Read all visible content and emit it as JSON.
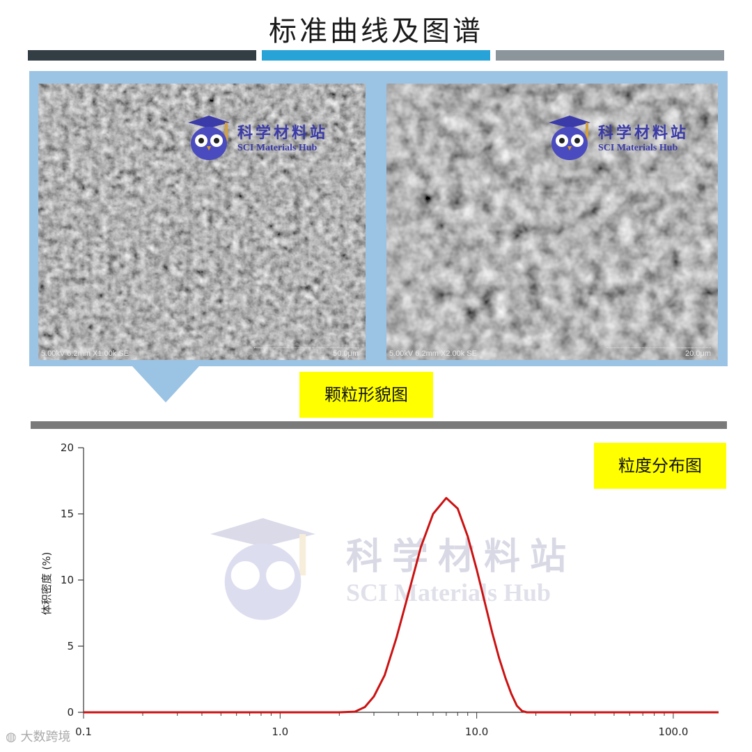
{
  "header": {
    "title": "标准曲线及图谱"
  },
  "sem": {
    "images": [
      {
        "caption": "5.00kV 6.2mm X1.00k SE",
        "scale": "50.0μm"
      },
      {
        "caption": "5.00kV 6.2mm X2.00k SE",
        "scale": "20.0μm"
      }
    ],
    "watermark_cn": "科学材料站",
    "watermark_en": "SCI Materials Hub"
  },
  "labels": {
    "morphology": "颗粒形貌图",
    "distribution": "粒度分布图"
  },
  "footer": {
    "brand": "大数跨境"
  },
  "colors": {
    "accent_blue": "#27a3d8",
    "frame_blue": "#9bc3e4",
    "label_yellow": "#ffff00",
    "curve_red": "#cc1111"
  },
  "chart_data": {
    "type": "line",
    "xlabel": "",
    "ylabel": "体积密度 (%)",
    "x_scale": "log",
    "xlim": [
      0.1,
      170
    ],
    "ylim": [
      0,
      20
    ],
    "xticks": [
      0.1,
      1.0,
      10.0,
      100.0
    ],
    "xtick_labels": [
      "0.1",
      "1.0",
      "10.0",
      "100.0"
    ],
    "yticks": [
      0,
      5,
      10,
      15,
      20
    ],
    "series": [
      {
        "color": "#cc1111",
        "x": [
          0.1,
          1.0,
          2.0,
          2.4,
          2.7,
          3.0,
          3.4,
          3.9,
          4.5,
          5.2,
          6.0,
          7.0,
          8.0,
          9.0,
          10.0,
          11.0,
          12.0,
          13.0,
          14.0,
          15.0,
          16.0,
          17.0,
          18.0,
          25.0,
          100.0,
          170.0
        ],
        "y": [
          0,
          0,
          0,
          0.05,
          0.4,
          1.2,
          2.8,
          5.6,
          9.0,
          12.5,
          15.0,
          16.2,
          15.4,
          13.3,
          10.8,
          8.3,
          6.0,
          4.1,
          2.6,
          1.4,
          0.5,
          0.1,
          0,
          0,
          0,
          0
        ]
      }
    ]
  }
}
